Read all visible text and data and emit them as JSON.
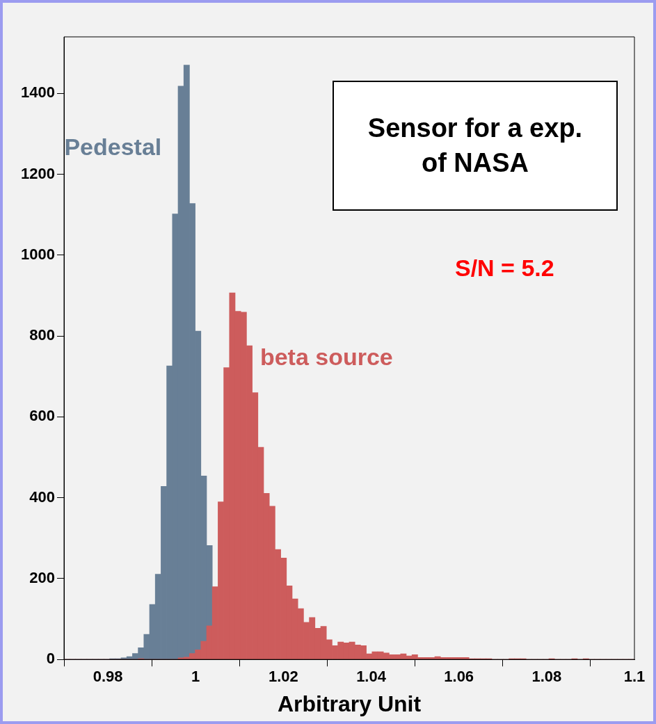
{
  "chart_data": {
    "type": "histogram",
    "xlabel": "Arbitrary Unit",
    "bins": [
      0.97,
      0.9713,
      0.9726,
      0.9739,
      0.9752,
      0.9765,
      0.9778,
      0.9791,
      0.9804,
      0.9817,
      0.983,
      0.9843,
      0.9856,
      0.9869,
      0.9882,
      0.9895,
      0.9908,
      0.9921,
      0.9934,
      0.9947,
      0.996,
      0.9973,
      0.9986,
      0.9999,
      1.0012,
      1.0025,
      1.0038,
      1.0051,
      1.0064,
      1.0077,
      1.009,
      1.0103,
      1.0116,
      1.0129,
      1.0142,
      1.0155,
      1.0168,
      1.0181,
      1.0194,
      1.0207,
      1.022,
      1.0233,
      1.0246,
      1.0259,
      1.0272,
      1.0285,
      1.0298,
      1.0311,
      1.0324,
      1.0337,
      1.035,
      1.0363,
      1.0376,
      1.0389,
      1.0402,
      1.0415,
      1.0428,
      1.0441,
      1.0454,
      1.0467,
      1.048,
      1.0493,
      1.0506,
      1.0519,
      1.0532,
      1.0545,
      1.0558,
      1.0571,
      1.0584,
      1.0597,
      1.061,
      1.0623,
      1.0636,
      1.0649,
      1.0662,
      1.0675,
      1.0688,
      1.0701,
      1.0714,
      1.0727,
      1.074,
      1.0753,
      1.0766,
      1.0779,
      1.0792,
      1.0805,
      1.0818,
      1.0831,
      1.0844,
      1.0857,
      1.087,
      1.0883,
      1.0896,
      1.0909,
      1.0922,
      1.0935,
      1.0948,
      1.0961,
      1.0974,
      1.0987,
      1.1
    ],
    "series": [
      {
        "name": "Pedestal",
        "color": "#687f96",
        "values": [
          0,
          0,
          0,
          0,
          0,
          0,
          0,
          0,
          2,
          2,
          4,
          7,
          15,
          29,
          62,
          136,
          211,
          428,
          726,
          1102,
          1418,
          1470,
          1128,
          812,
          454,
          282,
          null,
          null,
          null,
          null,
          null,
          null,
          null,
          null,
          null,
          null,
          null,
          null,
          null,
          null,
          null,
          null,
          null,
          null,
          null,
          null,
          null,
          null,
          null,
          null,
          null,
          null,
          null,
          null,
          null,
          null,
          null,
          null,
          null,
          null,
          null,
          null,
          null,
          null,
          null,
          null,
          null,
          null,
          null,
          null,
          null,
          null,
          null,
          null,
          null,
          null,
          null,
          null,
          null,
          null,
          null,
          null,
          null,
          null,
          null,
          null,
          null,
          null,
          null,
          null,
          null,
          null,
          null,
          null,
          null,
          null,
          null,
          null,
          null,
          null
        ]
      },
      {
        "name": "beta source",
        "color": "#cd5c5c",
        "values": [
          0,
          0,
          0,
          0,
          0,
          0,
          0,
          0,
          0,
          0,
          0,
          0,
          0,
          2,
          0,
          0,
          0,
          0,
          0,
          0,
          4,
          6,
          15,
          24,
          45,
          83,
          180,
          390,
          722,
          907,
          861,
          859,
          776,
          660,
          525,
          411,
          379,
          272,
          251,
          182,
          150,
          126,
          92,
          104,
          77,
          82,
          49,
          34,
          43,
          41,
          43,
          36,
          34,
          14,
          19,
          19,
          16,
          12,
          12,
          14,
          9,
          12,
          5,
          5,
          5,
          7,
          5,
          5,
          5,
          5,
          5,
          2,
          2,
          2,
          2,
          0,
          0,
          0,
          2,
          2,
          2,
          0,
          0,
          0,
          0,
          2,
          0,
          0,
          0,
          2,
          0,
          2,
          0,
          0,
          0,
          0,
          0,
          0,
          0,
          0
        ]
      }
    ],
    "xlim": [
      0.97,
      1.1
    ],
    "xticks": [
      0.98,
      1,
      1.02,
      1.04,
      1.06,
      1.08,
      1.1
    ],
    "ylim": [
      0,
      1540
    ],
    "yticks": [
      0,
      200,
      400,
      600,
      800,
      1000,
      1200,
      1400
    ],
    "annotations": [
      "Sensor for a exp. of NASA",
      "S/N = 5.2"
    ]
  }
}
